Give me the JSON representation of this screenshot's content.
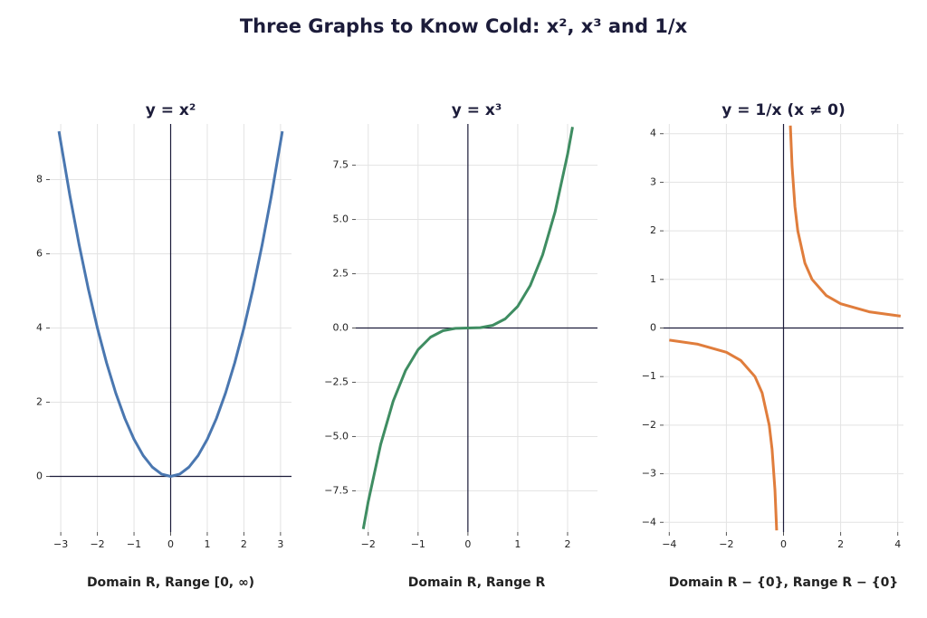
{
  "title": "Three Graphs to Know Cold:  x²,  x³  and  1/x",
  "chart_data": [
    {
      "type": "line",
      "title": "y = x²",
      "caption": "Domain R, Range [0, ∞)",
      "color": "#4a77b0",
      "grid": true,
      "x": [
        -3.05,
        -2.75,
        -2.5,
        -2.25,
        -2,
        -1.75,
        -1.5,
        -1.25,
        -1,
        -0.75,
        -0.5,
        -0.25,
        0,
        0.25,
        0.5,
        0.75,
        1,
        1.25,
        1.5,
        1.75,
        2,
        2.25,
        2.5,
        2.75,
        3.05
      ],
      "values": [
        9.3025,
        7.5625,
        6.25,
        5.0625,
        4,
        3.0625,
        2.25,
        1.5625,
        1,
        0.5625,
        0.25,
        0.0625,
        0,
        0.0625,
        0.25,
        0.5625,
        1,
        1.5625,
        2.25,
        3.0625,
        4,
        5.0625,
        6.25,
        7.5625,
        9.3025
      ],
      "xlim": [
        -3.3,
        3.3
      ],
      "ylim": [
        -1.5,
        9.5
      ],
      "xticks": [
        {
          "value": -3,
          "label": "−3"
        },
        {
          "value": -2,
          "label": "−2"
        },
        {
          "value": -1,
          "label": "−1"
        },
        0,
        1,
        2,
        3
      ],
      "yticks": [
        0,
        2,
        4,
        6,
        8
      ]
    },
    {
      "type": "line",
      "title": "y = x³",
      "caption": "Domain R, Range R",
      "color": "#3f8d62",
      "grid": true,
      "x": [
        -2.1,
        -2,
        -1.75,
        -1.5,
        -1.25,
        -1,
        -0.75,
        -0.5,
        -0.25,
        0,
        0.25,
        0.5,
        0.75,
        1,
        1.25,
        1.5,
        1.75,
        2,
        2.1
      ],
      "values": [
        -9.261,
        -8,
        -5.359375,
        -3.375,
        -1.953125,
        -1,
        -0.421875,
        -0.125,
        -0.015625,
        0,
        0.015625,
        0.125,
        0.421875,
        1,
        1.953125,
        3.375,
        5.359375,
        8,
        9.261
      ],
      "xlim": [
        -2.25,
        2.6
      ],
      "ylim": [
        -9.4,
        9.4
      ],
      "xticks": [
        {
          "value": -2,
          "label": "−2"
        },
        {
          "value": -1,
          "label": "−1"
        },
        0,
        1,
        2
      ],
      "yticks": [
        {
          "value": -7.5,
          "label": "−7.5"
        },
        {
          "value": -5,
          "label": "−5.0"
        },
        {
          "value": -2.5,
          "label": "−2.5"
        },
        {
          "value": 0,
          "label": "0.0"
        },
        {
          "value": 2.5,
          "label": "2.5"
        },
        {
          "value": 5,
          "label": "5.0"
        },
        {
          "value": 7.5,
          "label": "7.5"
        }
      ]
    },
    {
      "type": "line",
      "title": "y = 1/x  (x ≠ 0)",
      "caption": "Domain R − {0}, Range R − {0}",
      "color": "#e07d3c",
      "grid": true,
      "x": [
        -4,
        -3,
        -2,
        -1.5,
        -1,
        -0.75,
        -0.5,
        -0.4,
        -0.3,
        -0.24,
        null,
        0.24,
        0.3,
        0.4,
        0.5,
        0.75,
        1,
        1.5,
        2,
        3,
        4.1
      ],
      "values": [
        -0.25,
        -0.3333,
        -0.5,
        -0.6667,
        -1,
        -1.3333,
        -2,
        -2.5,
        -3.3333,
        -4.1667,
        null,
        4.1667,
        3.3333,
        2.5,
        2,
        1.3333,
        1,
        0.6667,
        0.5,
        0.3333,
        0.2439
      ],
      "xlim": [
        -4.2,
        4.2
      ],
      "ylim": [
        -4.2,
        4.2
      ],
      "xticks": [
        {
          "value": -4,
          "label": "−4"
        },
        {
          "value": -2,
          "label": "−2"
        },
        0,
        2,
        4
      ],
      "yticks": [
        {
          "value": -4,
          "label": "−4"
        },
        {
          "value": -3,
          "label": "−3"
        },
        {
          "value": -2,
          "label": "−2"
        },
        {
          "value": -1,
          "label": "−1"
        },
        0,
        1,
        2,
        3,
        4
      ]
    }
  ]
}
